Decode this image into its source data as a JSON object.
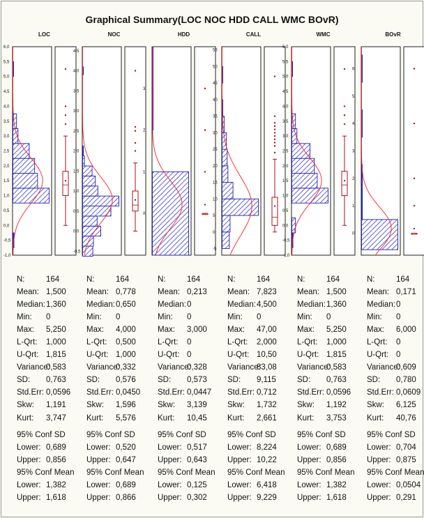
{
  "title": "Graphical Summary(LOC NOC HDD CALL WMC BOvR)",
  "colors": {
    "bar_fill": "#3a3ac8",
    "bar_edge": "#1f1fb0",
    "curve": "#ff2020",
    "box": "#b01010",
    "axis": "#222222",
    "panel": "#ffffff"
  },
  "stat_labels": {
    "n": "N:",
    "mean": "Mean:",
    "median": "Median:",
    "min": "Min:",
    "max": "Max:",
    "lqrt": "L-Qrt:",
    "uqrt": "U-Qrt:",
    "variance": "Variance:",
    "sd": "SD:",
    "stderr": "Std.Err:",
    "skw": "Skw:",
    "kurt": "Kurt:",
    "conf_sd": "95% Conf SD",
    "lower": "Lower:",
    "upper": "Upper:",
    "conf_mean": "95% Conf Mean"
  },
  "chart_data": [
    {
      "type": "bar",
      "name": "LOC",
      "ylim": [
        -1.0,
        6.0
      ],
      "yticks": [
        "6,0",
        "5,5",
        "5,0",
        "4,5",
        "4,0",
        "3,5",
        "3,0",
        "2,5",
        "2,0",
        "1,5",
        "1,0",
        "0,5",
        "0,0",
        "-0,5",
        "-1,0"
      ],
      "ytick_values": [
        6.0,
        5.5,
        5.0,
        4.5,
        4.0,
        3.5,
        3.0,
        2.5,
        2.0,
        1.5,
        1.0,
        0.5,
        0.0,
        -0.5,
        -1.0
      ],
      "bins": [
        [
          -0.75,
          -0.25,
          0.03
        ],
        [
          -0.25,
          0.25,
          0.0
        ],
        [
          0.25,
          0.75,
          0.0
        ],
        [
          0.75,
          1.25,
          1.0
        ],
        [
          1.25,
          1.75,
          0.68
        ],
        [
          1.75,
          2.25,
          0.6
        ],
        [
          2.25,
          2.75,
          0.45
        ],
        [
          2.75,
          3.25,
          0.14
        ],
        [
          3.25,
          3.75,
          0.1
        ],
        [
          5.0,
          5.5,
          0.02
        ]
      ],
      "box": {
        "min": 0,
        "q1": 1.0,
        "median": 1.36,
        "q3": 1.815,
        "whisker_low": 0,
        "whisker_high": 3.0,
        "mean": 1.5,
        "outliers": [
          3.4,
          3.7,
          4.0,
          5.25
        ]
      },
      "stats": {
        "n": "164",
        "mean": "1,500",
        "median": "1,360",
        "min": "0",
        "max": "5,250",
        "lqrt": "1,000",
        "uqrt": "1,815",
        "variance": "0,583",
        "sd": "0,763",
        "stderr": "0,0596",
        "skw": "1,191",
        "kurt": "3,747",
        "sd_lower": "0,689",
        "sd_upper": "0,856",
        "mean_lower": "1,382",
        "mean_upper": "1,618"
      }
    },
    {
      "type": "bar",
      "name": "NOC",
      "ylim": [
        -0.6,
        4.6
      ],
      "yticks": [
        "4,5",
        "4,0",
        "3,5",
        "3,0",
        "2,5",
        "2,0",
        "1,5",
        "1,0",
        "0,5",
        "0,0",
        "-0,5"
      ],
      "ytick_values": [
        4.5,
        4.0,
        3.5,
        3.0,
        2.5,
        2.0,
        1.5,
        1.0,
        0.5,
        0.0,
        -0.5
      ],
      "bins": [
        [
          -0.625,
          -0.375,
          0.28
        ],
        [
          -0.375,
          -0.125,
          0.3
        ],
        [
          -0.125,
          0.125,
          0.5
        ],
        [
          0.125,
          0.375,
          0.4
        ],
        [
          0.375,
          0.625,
          0.78
        ],
        [
          0.625,
          0.875,
          1.0
        ],
        [
          0.875,
          1.125,
          0.42
        ],
        [
          1.125,
          1.375,
          0.35
        ],
        [
          1.375,
          1.625,
          0.26
        ],
        [
          1.625,
          1.875,
          0.05
        ],
        [
          1.875,
          2.125,
          0.02
        ],
        [
          3.9,
          4.1,
          0.02
        ]
      ],
      "box": {
        "min": 0,
        "q1": 0.5,
        "median": 0.65,
        "q3": 1.0,
        "whisker_low": 0,
        "whisker_high": 1.7,
        "mean": 0.778,
        "outliers": [
          2.0,
          2.2,
          2.5,
          2.6,
          4.0
        ]
      },
      "stats": {
        "n": "164",
        "mean": "0,778",
        "median": "0,650",
        "min": "0",
        "max": "4,000",
        "lqrt": "0,500",
        "uqrt": "1,000",
        "variance": "0,332",
        "sd": "0,576",
        "stderr": "0,0450",
        "skw": "1,596",
        "kurt": "5,576",
        "sd_lower": "0,520",
        "sd_upper": "0,647",
        "mean_lower": "0,689",
        "mean_upper": "0,866"
      }
    },
    {
      "type": "bar",
      "name": "HDD",
      "ylim": [
        -1.0,
        4.0
      ],
      "yticks": [
        "3",
        "2",
        "1",
        "0"
      ],
      "ytick_values": [
        3,
        2,
        1,
        0
      ],
      "bins": [
        [
          -1.0,
          1.0,
          1.0
        ],
        [
          1.0,
          2.0,
          0.0
        ],
        [
          2.0,
          3.0,
          0.02
        ],
        [
          3.0,
          4.0,
          0.01
        ]
      ],
      "box": {
        "min": 0,
        "q1": 0,
        "median": 0,
        "q3": 0,
        "whisker_low": 0,
        "whisker_high": 0,
        "mean": 0.213,
        "outliers": [
          1.0,
          2.0,
          3.0
        ]
      },
      "stats": {
        "n": "164",
        "mean": "0,213",
        "median": "0",
        "min": "0",
        "max": "3,000",
        "lqrt": "0",
        "uqrt": "0",
        "variance": "0,328",
        "sd": "0,573",
        "stderr": "0,0447",
        "skw": "3,139",
        "kurt": "10,45",
        "sd_lower": "0,517",
        "sd_upper": "0,643",
        "mean_lower": "0,125",
        "mean_upper": "0,302"
      }
    },
    {
      "type": "bar",
      "name": "CALL",
      "ylim": [
        -7,
        56
      ],
      "yticks": [
        "55",
        "50",
        "45",
        "40",
        "35",
        "30",
        "25",
        "20",
        "15",
        "10",
        "5",
        "0",
        "-5"
      ],
      "ytick_values": [
        55,
        50,
        45,
        40,
        35,
        30,
        25,
        20,
        15,
        10,
        5,
        0,
        -5
      ],
      "bins": [
        [
          -5,
          0,
          0.2
        ],
        [
          0,
          5,
          0.22
        ],
        [
          5,
          10,
          1.0
        ],
        [
          10,
          15,
          0.3
        ],
        [
          15,
          20,
          0.16
        ],
        [
          20,
          25,
          0.14
        ],
        [
          25,
          30,
          0.12
        ],
        [
          30,
          35,
          0.06
        ],
        [
          35,
          40,
          0.02
        ],
        [
          45,
          50,
          0.01
        ]
      ],
      "box": {
        "min": 0,
        "q1": 2.0,
        "median": 4.5,
        "q3": 10.5,
        "whisker_low": 0,
        "whisker_high": 22.0,
        "mean": 7.823,
        "outliers": [
          24,
          26,
          27,
          28,
          29,
          30,
          31,
          32,
          33,
          35,
          47
        ]
      },
      "stats": {
        "n": "164",
        "mean": "7,823",
        "median": "4,500",
        "min": "0",
        "max": "47,00",
        "lqrt": "2,000",
        "uqrt": "10,50",
        "variance": "83,08",
        "sd": "9,115",
        "stderr": "0,712",
        "skw": "1,732",
        "kurt": "2,661",
        "sd_lower": "8,224",
        "sd_upper": "10,22",
        "mean_lower": "6,418",
        "mean_upper": "9,229"
      }
    },
    {
      "type": "bar",
      "name": "WMC",
      "ylim": [
        -1.0,
        6.0
      ],
      "yticks": [
        "6,0",
        "5,5",
        "5,0",
        "4,5",
        "4,0",
        "3,5",
        "3,0",
        "2,5",
        "2,0",
        "1,5",
        "1,0",
        "0,5",
        "0,0",
        "-0,5",
        "-1,0"
      ],
      "ytick_values": [
        6.0,
        5.5,
        5.0,
        4.5,
        4.0,
        3.5,
        3.0,
        2.5,
        2.0,
        1.5,
        1.0,
        0.5,
        0.0,
        -0.5,
        -1.0
      ],
      "bins": [
        [
          -0.75,
          -0.25,
          0.03
        ],
        [
          -0.25,
          0.25,
          0.1
        ],
        [
          0.25,
          0.75,
          0.0
        ],
        [
          0.75,
          1.25,
          1.0
        ],
        [
          1.25,
          1.75,
          0.7
        ],
        [
          1.75,
          2.25,
          0.62
        ],
        [
          2.25,
          2.75,
          0.5
        ],
        [
          2.75,
          3.25,
          0.14
        ],
        [
          3.25,
          3.75,
          0.1
        ],
        [
          5.0,
          5.5,
          0.02
        ]
      ],
      "box": {
        "min": 0,
        "q1": 1.0,
        "median": 1.36,
        "q3": 1.815,
        "whisker_low": 0,
        "whisker_high": 3.0,
        "mean": 1.5,
        "outliers": [
          3.4,
          3.7,
          4.0,
          5.25
        ]
      },
      "stats": {
        "n": "164",
        "mean": "1,500",
        "median": "1,360",
        "min": "0",
        "max": "5,250",
        "lqrt": "1,000",
        "uqrt": "1,815",
        "variance": "0,583",
        "sd": "0,763",
        "stderr": "0,0596",
        "skw": "1,192",
        "kurt": "3,753",
        "sd_lower": "0,689",
        "sd_upper": "0,856",
        "mean_lower": "1,382",
        "mean_upper": "1,618"
      }
    },
    {
      "type": "bar",
      "name": "BOvR",
      "ylim": [
        -0.8,
        6.8
      ],
      "yticks": [
        "6",
        "5",
        "4",
        "3",
        "2",
        "1",
        "0"
      ],
      "ytick_values": [
        6,
        5,
        4,
        3,
        2,
        1,
        0
      ],
      "bins": [
        [
          -0.6,
          0.5,
          1.0
        ],
        [
          0.5,
          1.5,
          0.02
        ],
        [
          1.5,
          2.5,
          0.02
        ],
        [
          3.5,
          4.5,
          0.01
        ],
        [
          5.5,
          6.5,
          0.01
        ]
      ],
      "box": {
        "min": 0,
        "q1": 0,
        "median": 0,
        "q3": 0,
        "whisker_low": 0,
        "whisker_high": 0,
        "mean": 0.171,
        "outliers": [
          1.0,
          2.0,
          4.0,
          6.0
        ]
      },
      "stats": {
        "n": "164",
        "mean": "0,171",
        "median": "0",
        "min": "0",
        "max": "6,000",
        "lqrt": "0",
        "uqrt": "0",
        "variance": "0,609",
        "sd": "0,780",
        "stderr": "0,0609",
        "skw": "6,125",
        "kurt": "40,76",
        "sd_lower": "0,704",
        "sd_upper": "0,875",
        "mean_lower": "0,0504",
        "mean_upper": "0,291"
      }
    }
  ]
}
